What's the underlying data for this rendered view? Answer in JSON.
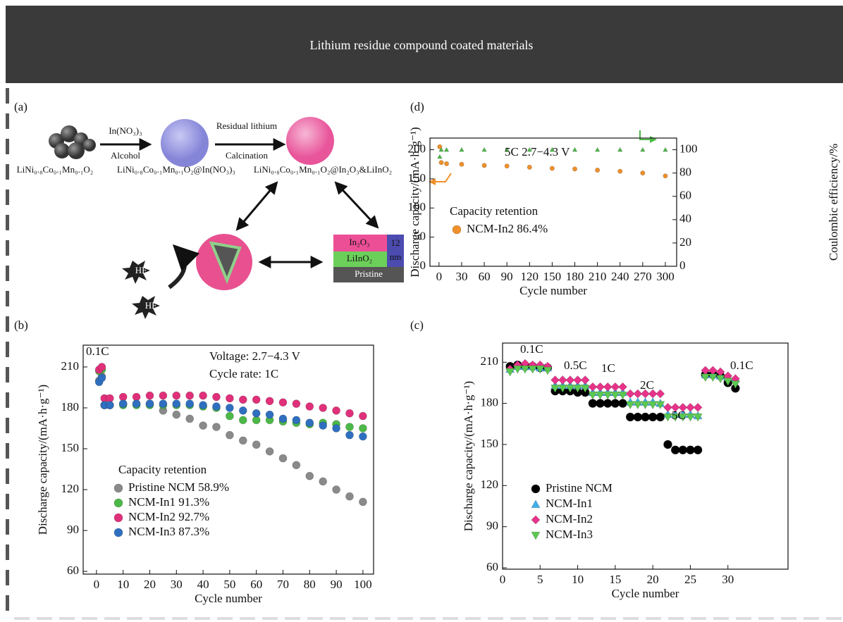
{
  "header": {
    "title": "Lithium residue compound coated materials"
  },
  "panels": {
    "a": "(a)",
    "b": "(b)",
    "c": "(c)",
    "d": "(d)"
  },
  "diagram": {
    "reagent": "In(NO₃)₃",
    "solvent": "Alcohol",
    "step_2": "Residual lithium",
    "process_2": "Calcination",
    "material_1": "LiNi₀.₈Co₀.₁Mn₀.₁O₂",
    "material_2": "LiNi₀.₈Co₀.₁Mn₀.₁O₂@In(NO₃)₃",
    "material_3": "LiNi₀.₈Co₀.₁Mn₀.₁O₂@In₂O₃&LiInO₂",
    "layer_1": "In₂O₃",
    "layer_2": "LiInO₂",
    "layer_3": "Pristine",
    "thickness_value": "12",
    "thickness_unit": "nm",
    "species_1": "HF",
    "species_2": "HF"
  },
  "chart_data": [
    {
      "type": "scatter",
      "x_label": "Cycle number",
      "y_label": "Discharge capacity/(mA·h·g⁻¹)",
      "annotations": [
        "0.1C",
        "Voltage: 2.7−4.3 V",
        "Cycle rate: 1C"
      ],
      "legend_title": "Capacity retention",
      "x": [
        1,
        2,
        3,
        5,
        10,
        15,
        20,
        25,
        30,
        35,
        40,
        45,
        50,
        55,
        60,
        65,
        70,
        75,
        80,
        85,
        90,
        95,
        100
      ],
      "xlim": [
        -5,
        104
      ],
      "xticks": [
        0,
        10,
        20,
        30,
        40,
        50,
        60,
        70,
        80,
        90,
        100
      ],
      "ylim": [
        58,
        226
      ],
      "yticks": [
        60,
        90,
        120,
        150,
        180,
        210
      ],
      "series": [
        {
          "name": "Pristine NCM 58.9%",
          "color": "#8a8a8a",
          "marker": "circle",
          "values": [
            200,
            203,
            182,
            182,
            183,
            183,
            183,
            178,
            175,
            172,
            167,
            166,
            160,
            156,
            153,
            148,
            143,
            138,
            130,
            126,
            120,
            115,
            111
          ]
        },
        {
          "name": "NCM-In1 91.3%",
          "color": "#4cb848",
          "marker": "circle",
          "values": [
            207,
            208,
            182,
            182,
            182,
            182,
            182,
            182,
            182,
            182,
            181,
            180,
            174,
            171,
            171,
            171,
            170,
            169,
            168,
            169,
            168,
            166,
            165
          ]
        },
        {
          "name": "NCM-In2 92.7%",
          "color": "#e0307a",
          "marker": "circle",
          "values": [
            208,
            210,
            187,
            187,
            188,
            188,
            189,
            189,
            189,
            189,
            189,
            188,
            187,
            186,
            186,
            185,
            184,
            183,
            181,
            180,
            178,
            176,
            174
          ]
        },
        {
          "name": "NCM-In3 87.3%",
          "color": "#2f6fc0",
          "marker": "circle",
          "values": [
            199,
            202,
            182,
            182,
            183,
            183,
            183,
            183,
            183,
            183,
            182,
            181,
            180,
            178,
            176,
            175,
            172,
            171,
            169,
            167,
            165,
            160,
            159
          ]
        }
      ]
    },
    {
      "type": "scatter",
      "x_label": "Cycle number",
      "y_label": "Discharge capacity/(mA·h·g⁻¹)",
      "y2_label": "Coulombic efficiency/%",
      "annotations": [
        "5C 2.7−4.3 V",
        "Capacity retention"
      ],
      "x": [
        1,
        3,
        10,
        30,
        60,
        90,
        120,
        150,
        180,
        210,
        240,
        270,
        300
      ],
      "xlim": [
        -12,
        315
      ],
      "xticks": [
        0,
        30,
        60,
        90,
        120,
        150,
        180,
        210,
        240,
        270,
        300
      ],
      "ylim": [
        0,
        220
      ],
      "yticks": [
        0,
        50,
        100,
        150,
        200
      ],
      "y2lim": [
        0,
        110
      ],
      "y2ticks": [
        0,
        20,
        40,
        60,
        80,
        100
      ],
      "series": [
        {
          "name": "NCM-In2 86.4%",
          "color": "#f0902a",
          "marker": "circle",
          "values": [
            205,
            178,
            176,
            175,
            173,
            172,
            170,
            168,
            167,
            165,
            163,
            160,
            155
          ]
        },
        {
          "color": "#4cb848",
          "marker": "triangle-up",
          "axis": "y2",
          "values": [
            94,
            100,
            100,
            100,
            100,
            100,
            100,
            100,
            100,
            100,
            100,
            100,
            100
          ]
        }
      ]
    },
    {
      "type": "scatter",
      "x_label": "Cycle number",
      "y_label": "Discharge capacity/(mA·h·g⁻¹)",
      "annotations": [
        "0.1C",
        "0.5C",
        "1C",
        "2C",
        "5C",
        "0.1C"
      ],
      "x": [
        1,
        2,
        3,
        4,
        5,
        6,
        7,
        8,
        9,
        10,
        11,
        12,
        13,
        14,
        15,
        16,
        17,
        18,
        19,
        20,
        21,
        22,
        23,
        24,
        25,
        26,
        27,
        28,
        29,
        30,
        31
      ],
      "xlim": [
        0,
        38
      ],
      "xticks": [
        0,
        5,
        10,
        15,
        20,
        25,
        30
      ],
      "ylim": [
        59,
        224
      ],
      "yticks": [
        60,
        90,
        120,
        150,
        180,
        210
      ],
      "series": [
        {
          "name": "Pristine NCM",
          "color": "#000000",
          "marker": "circle",
          "values": [
            207,
            208,
            207,
            207,
            206,
            206,
            189,
            189,
            189,
            188,
            188,
            180,
            180,
            180,
            180,
            180,
            170,
            170,
            170,
            170,
            170,
            150,
            146,
            146,
            146,
            146,
            201,
            201,
            200,
            195,
            191
          ]
        },
        {
          "name": "NCM-In1",
          "color": "#3fb0e8",
          "marker": "triangle-up",
          "values": [
            205,
            207,
            207,
            207,
            206,
            206,
            193,
            193,
            193,
            193,
            193,
            188,
            188,
            188,
            188,
            188,
            181,
            181,
            181,
            181,
            180,
            172,
            172,
            172,
            172,
            171,
            201,
            201,
            200,
            199,
            198
          ]
        },
        {
          "name": "NCM-In2",
          "color": "#e8338a",
          "marker": "diamond",
          "values": [
            205,
            208,
            209,
            208,
            208,
            207,
            197,
            197,
            197,
            197,
            197,
            192,
            192,
            192,
            192,
            192,
            187,
            187,
            187,
            187,
            187,
            177,
            177,
            177,
            177,
            177,
            204,
            204,
            203,
            200,
            198
          ]
        },
        {
          "name": "NCM-In3",
          "color": "#5cc850",
          "marker": "triangle-down",
          "values": [
            203,
            205,
            205,
            205,
            205,
            204,
            191,
            191,
            191,
            191,
            191,
            186,
            186,
            186,
            186,
            186,
            179,
            179,
            179,
            179,
            179,
            170,
            170,
            170,
            170,
            170,
            199,
            199,
            198,
            196,
            194
          ]
        }
      ]
    }
  ]
}
